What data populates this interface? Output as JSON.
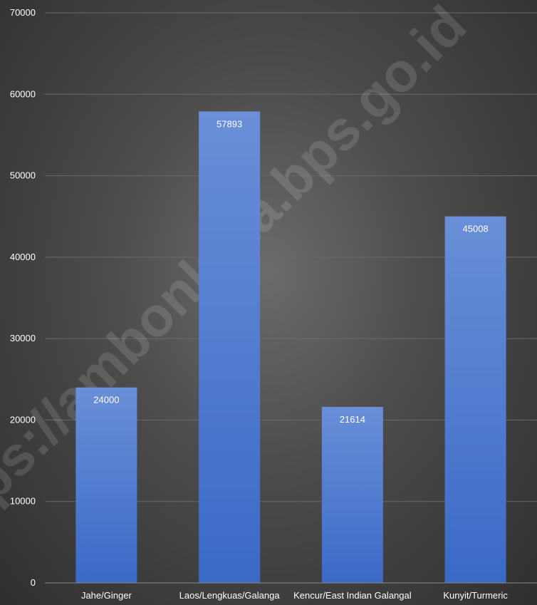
{
  "watermark": "https://ambonkota.bps.go.id",
  "chart_data": {
    "type": "bar",
    "categories": [
      "Jahe/Ginger",
      "Laos/Lengkuas/Galanga",
      "Kencur/East Indian Galangal",
      "Kunyit/Turmeric"
    ],
    "values": [
      24000,
      57893,
      21614,
      45008
    ],
    "title": "",
    "xlabel": "",
    "ylabel": "",
    "ylim": [
      0,
      70000
    ],
    "yticks": [
      0,
      10000,
      20000,
      30000,
      40000,
      50000,
      60000,
      70000
    ],
    "grid": true,
    "legend": "none",
    "bar_color": "#4a78cf",
    "bar_color_light": "#6a8fd8",
    "bar_color_dark": "#3a69c6",
    "text_color": "#ffffff",
    "grid_color": "#6a6a6a"
  }
}
